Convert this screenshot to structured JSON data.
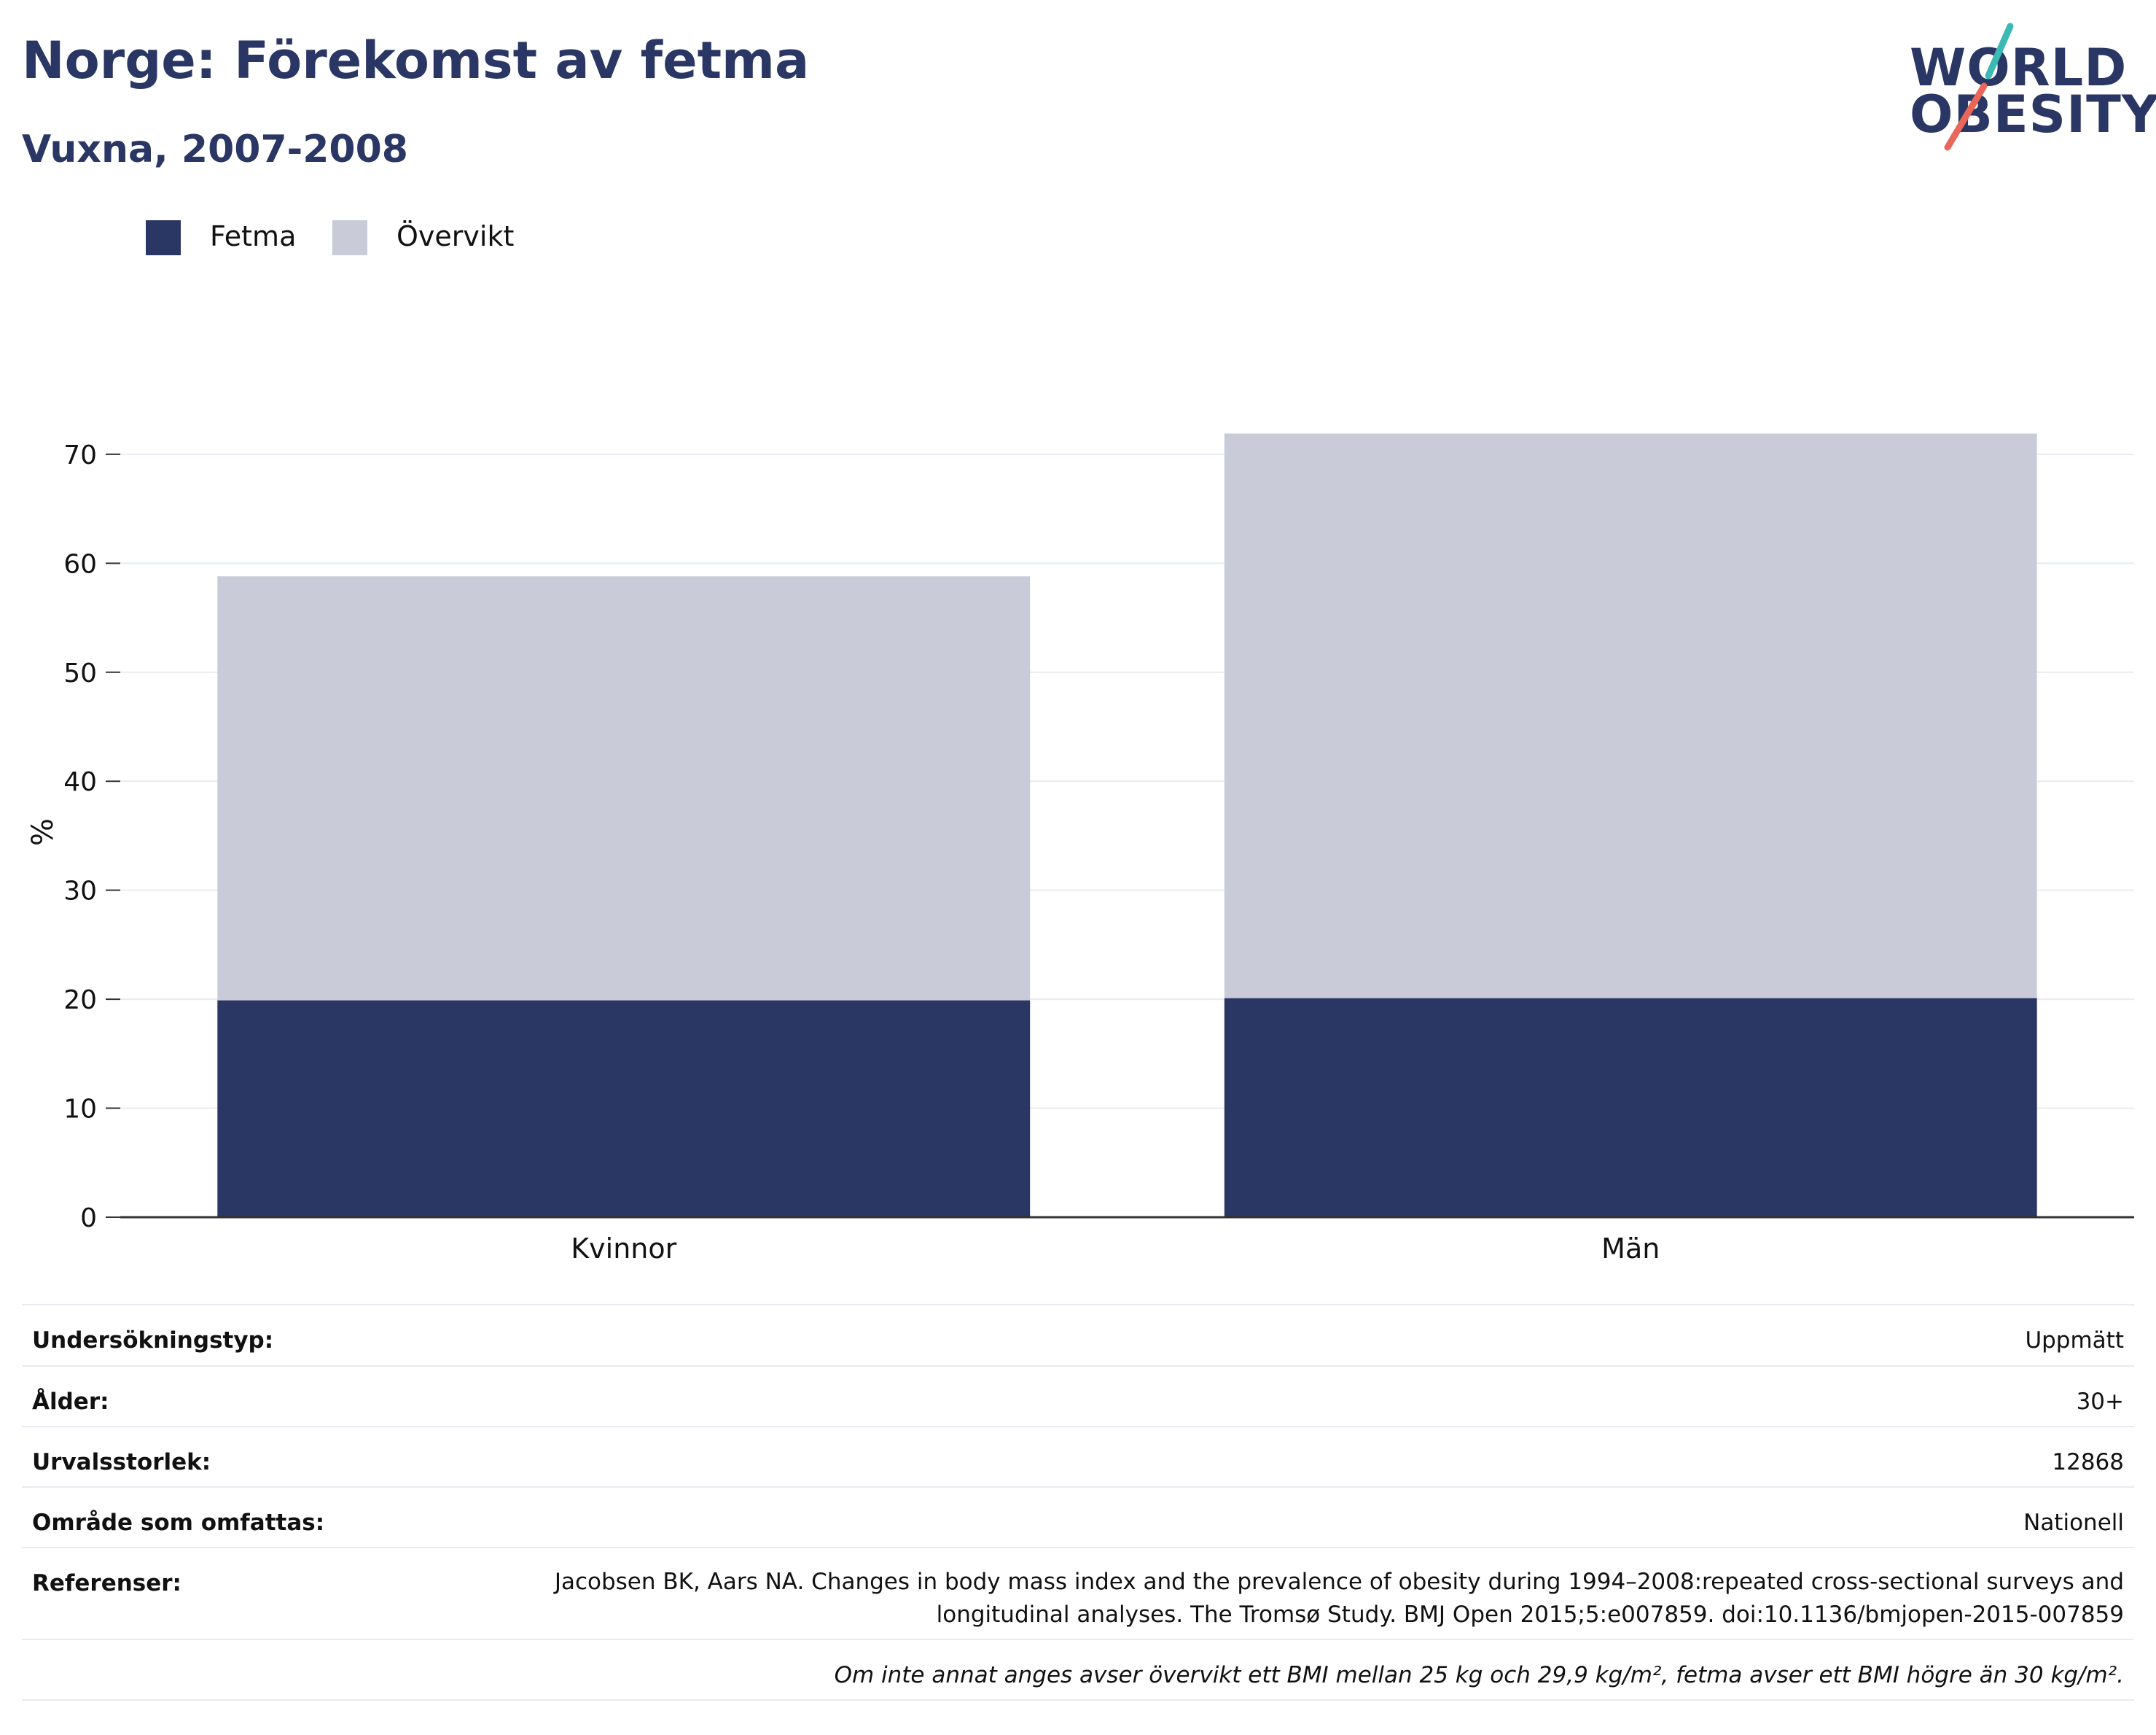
{
  "header": {
    "title": "Norge: Förekomst av fetma",
    "subtitle": "Vuxna, 2007-2008"
  },
  "logo": {
    "line1": "WORLD",
    "line2": "OBESITY"
  },
  "colors": {
    "title": "#2a3663",
    "fetma": "#2a3663",
    "overvikt": "#c9ccd8",
    "grid": "#e8ecf2",
    "axis": "#333333",
    "logo_teal": "#3bb9b4",
    "logo_coral": "#e8675a"
  },
  "legend": {
    "items": [
      {
        "label": "Fetma",
        "color": "#2a3663"
      },
      {
        "label": "Övervikt",
        "color": "#c9ccd8"
      }
    ]
  },
  "chart_data": {
    "type": "bar",
    "stacked": true,
    "categories": [
      "Kvinnor",
      "Män"
    ],
    "series": [
      {
        "name": "Fetma",
        "values": [
          19.9,
          20.1
        ],
        "color": "#2a3663"
      },
      {
        "name": "Övervikt",
        "values": [
          38.9,
          51.8
        ],
        "color": "#c9ccd8"
      }
    ],
    "xlabel": "",
    "ylabel": "%",
    "ylim": [
      0,
      72
    ],
    "yticks": [
      0,
      10,
      20,
      30,
      40,
      50,
      60,
      70
    ],
    "grid": true,
    "legend_position": "top-left"
  },
  "info": {
    "rows": [
      {
        "key": "Undersökningstyp:",
        "value": "Uppmätt"
      },
      {
        "key": "Ålder:",
        "value": "30+"
      },
      {
        "key": "Urvalsstorlek:",
        "value": "12868"
      },
      {
        "key": "Område som omfattas:",
        "value": "Nationell"
      }
    ],
    "references": {
      "key": "Referenser:",
      "value": "Jacobsen BK, Aars NA. Changes in body mass index and the prevalence of obesity during 1994–2008:repeated cross-sectional surveys and longitudinal analyses. The Tromsø Study. BMJ Open 2015;5:e007859. doi:10.1136/bmjopen-2015-007859"
    },
    "note": "Om inte annat anges avser övervikt ett BMI mellan 25 kg och 29,9 kg/m², fetma avser ett BMI högre än 30 kg/m²."
  }
}
